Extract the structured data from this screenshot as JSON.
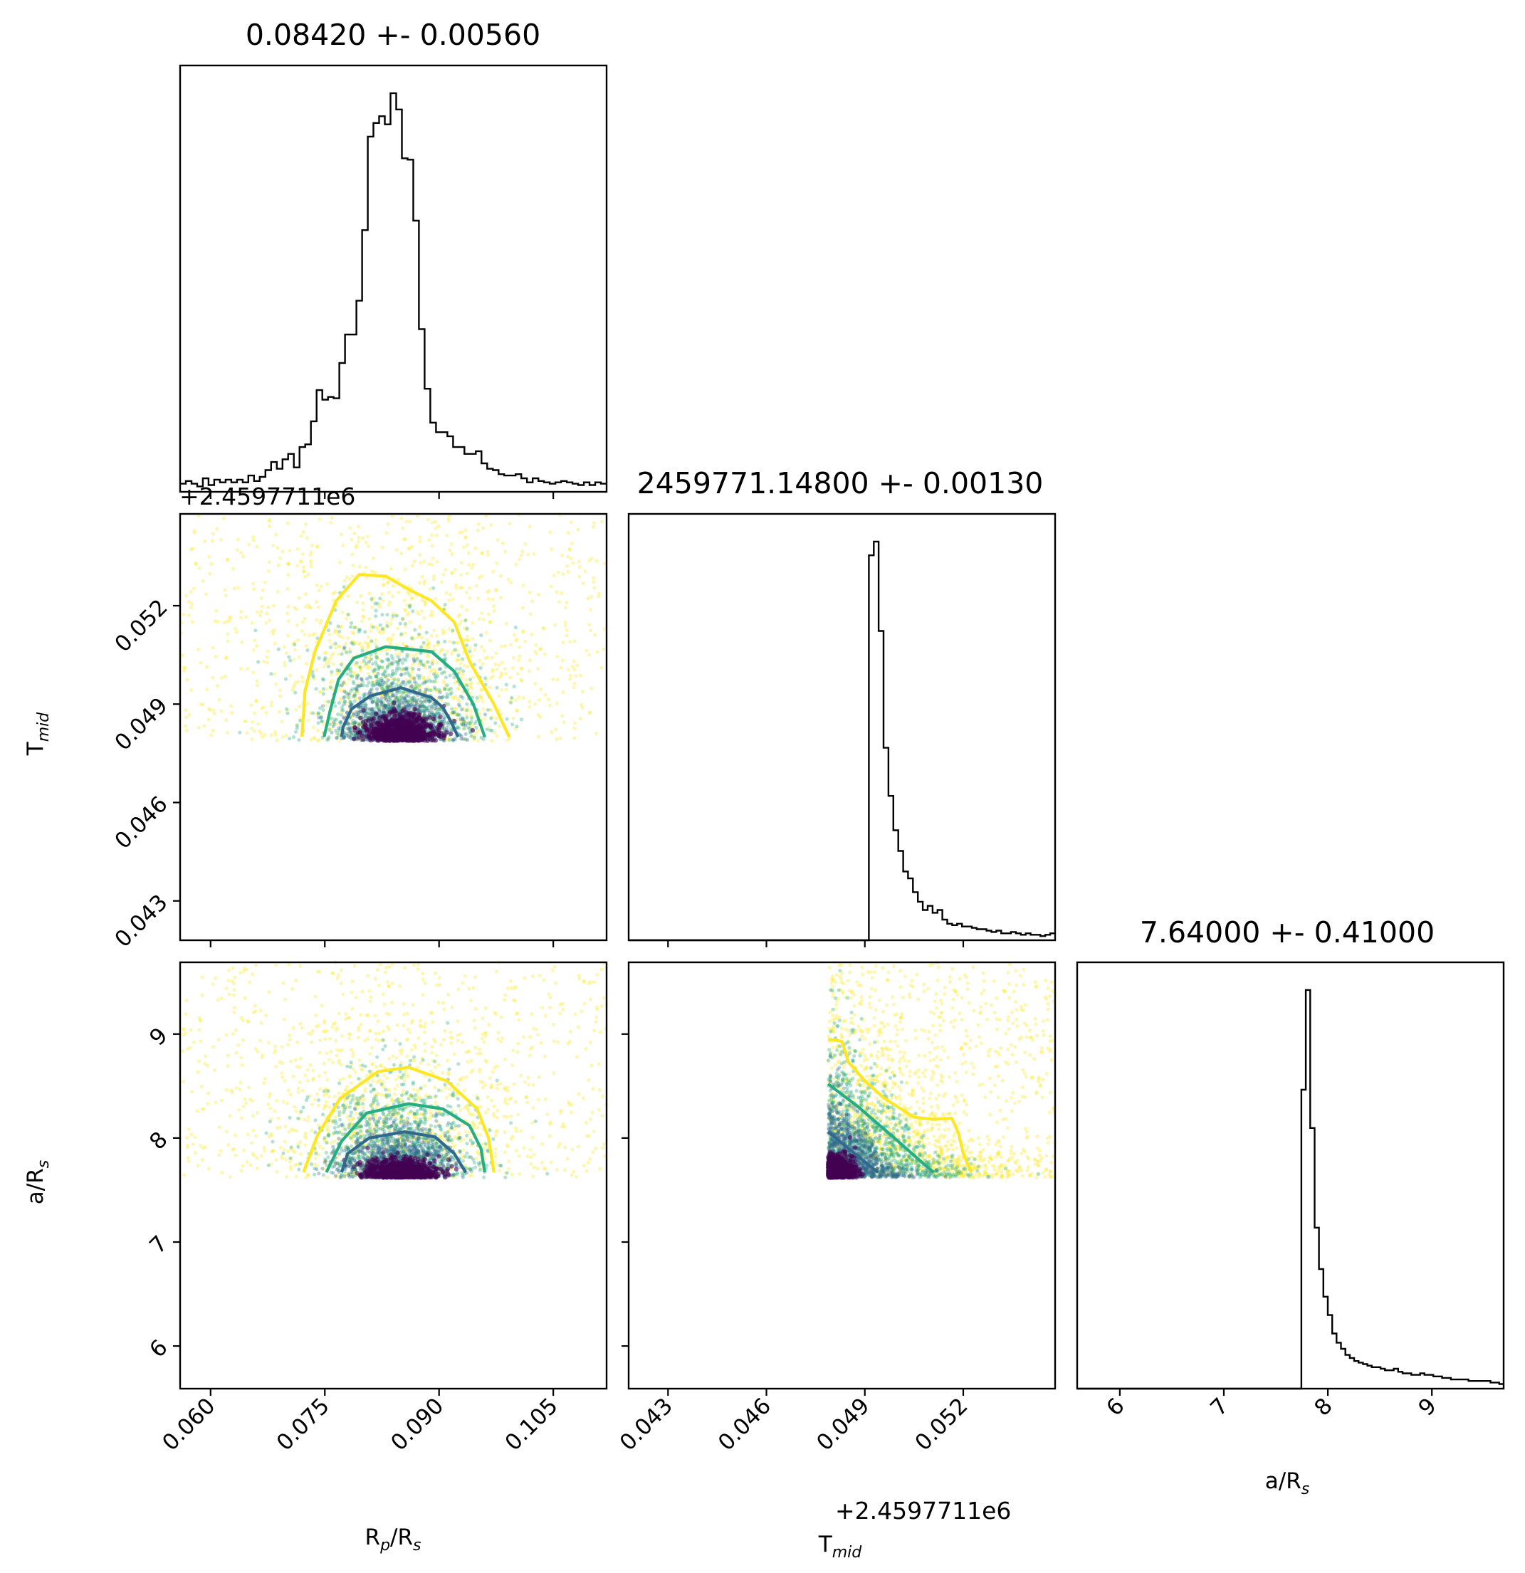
{
  "chart_data": {
    "type": "scatter",
    "kind": "corner-plot",
    "parameters": [
      {
        "id": "rp",
        "label_main": "R",
        "label_sub": "p",
        "label_tail": "/R",
        "label_sub2": "s",
        "range": [
          0.056,
          0.112
        ],
        "ticks": [
          "0.060",
          "0.075",
          "0.090",
          "0.105"
        ],
        "tick_values": [
          0.06,
          0.075,
          0.09,
          0.105
        ]
      },
      {
        "id": "tmid",
        "label_main": "T",
        "label_sub": "mid",
        "offset_text": "+2.4597711e6",
        "range": [
          0.0418,
          0.0548
        ],
        "ticks": [
          "0.043",
          "0.046",
          "0.049",
          "0.052"
        ],
        "tick_values": [
          0.043,
          0.046,
          0.049,
          0.052
        ]
      },
      {
        "id": "ars",
        "label_main": "a/R",
        "label_sub": "s",
        "range": [
          5.59,
          9.69
        ],
        "ticks": [
          "6",
          "7",
          "8",
          "9"
        ],
        "tick_values": [
          6,
          7,
          8,
          9
        ]
      }
    ],
    "titles": [
      "0.08420 +- 0.00560",
      "2459771.14800 +- 0.00130",
      "7.64000 +- 0.41000"
    ],
    "histograms": {
      "rp": {
        "bins_start": 0.056,
        "bins_end": 0.112,
        "counts": [
          6,
          8,
          6,
          4,
          10,
          5,
          9,
          7,
          9,
          7,
          9,
          7,
          12,
          8,
          11,
          16,
          22,
          17,
          24,
          28,
          18,
          33,
          35,
          52,
          75,
          68,
          70,
          69,
          95,
          116,
          116,
          141,
          193,
          262,
          272,
          277,
          271,
          294,
          282,
          246,
          245,
          200,
          120,
          76,
          51,
          44,
          44,
          41,
          33,
          33,
          28,
          28,
          30,
          21,
          17,
          16,
          13,
          12,
          12,
          13,
          10,
          7,
          10,
          8,
          7,
          6,
          7,
          8,
          7,
          6,
          5,
          7,
          5,
          7,
          6
        ]
      },
      "tmid": {
        "bins_start": 0.0418,
        "bins_end": 0.0548,
        "zero_below": 0.04788,
        "counts": [
          0,
          0,
          0,
          0,
          0,
          0,
          0,
          0,
          0,
          0,
          0,
          0,
          0,
          0,
          0,
          0,
          0,
          0,
          0,
          0,
          0,
          0,
          0,
          0,
          0,
          0,
          0,
          0,
          0,
          0,
          0,
          0,
          0,
          0,
          0,
          0,
          0,
          0,
          0,
          0,
          0,
          0,
          0,
          0,
          0,
          0,
          0,
          0,
          0,
          280,
          290,
          225,
          140,
          105,
          80,
          65,
          50,
          45,
          35,
          28,
          22,
          25,
          20,
          22,
          15,
          12,
          11,
          12,
          10,
          10,
          9,
          8,
          8,
          7,
          6,
          7,
          5,
          5,
          6,
          5,
          4,
          5,
          4,
          4,
          3,
          4,
          5
        ]
      },
      "ars": {
        "bins_start": 5.59,
        "bins_end": 9.69,
        "zero_below": 7.62,
        "counts": [
          0,
          0,
          0,
          0,
          0,
          0,
          0,
          0,
          0,
          0,
          0,
          0,
          0,
          0,
          0,
          0,
          0,
          0,
          0,
          0,
          0,
          0,
          0,
          0,
          0,
          0,
          0,
          0,
          0,
          0,
          0,
          0,
          0,
          0,
          0,
          0,
          0,
          0,
          0,
          0,
          0,
          0,
          0,
          0,
          0,
          0,
          0,
          0,
          0,
          0,
          0,
          195,
          260,
          170,
          105,
          78,
          60,
          48,
          36,
          30,
          26,
          22,
          20,
          18,
          17,
          16,
          15,
          14,
          14,
          13,
          12,
          12,
          13,
          11,
          10,
          10,
          9,
          9,
          10,
          9,
          9,
          8,
          8,
          7,
          7,
          6,
          6,
          6,
          6,
          5,
          5,
          5,
          5,
          5,
          4,
          4,
          3
        ]
      }
    },
    "contours": {
      "rp_tmid": [
        {
          "level": "inner",
          "color": "#31688e",
          "points": [
            [
              0.0772,
              0.048
            ],
            [
              0.0774,
              0.0483
            ],
            [
              0.0785,
              0.04885
            ],
            [
              0.081,
              0.04925
            ],
            [
              0.085,
              0.0495
            ],
            [
              0.089,
              0.0492
            ],
            [
              0.0905,
              0.0489
            ],
            [
              0.0916,
              0.04845
            ],
            [
              0.0925,
              0.048
            ]
          ]
        },
        {
          "level": "middle",
          "color": "#26ad81",
          "points": [
            [
              0.0749,
              0.048
            ],
            [
              0.0757,
              0.0488
            ],
            [
              0.0768,
              0.04975
            ],
            [
              0.0788,
              0.0504
            ],
            [
              0.083,
              0.05075
            ],
            [
              0.089,
              0.0506
            ],
            [
              0.092,
              0.05
            ],
            [
              0.0945,
              0.049
            ],
            [
              0.096,
              0.048
            ]
          ]
        },
        {
          "level": "outer",
          "color": "#fde725",
          "points": [
            [
              0.072,
              0.048
            ],
            [
              0.0724,
              0.0494
            ],
            [
              0.0737,
              0.0506
            ],
            [
              0.0765,
              0.05215
            ],
            [
              0.0795,
              0.05295
            ],
            [
              0.083,
              0.0529
            ],
            [
              0.086,
              0.0525
            ],
            [
              0.089,
              0.05215
            ],
            [
              0.092,
              0.0515
            ],
            [
              0.094,
              0.0503
            ],
            [
              0.0972,
              0.049
            ],
            [
              0.0992,
              0.048
            ]
          ]
        }
      ],
      "rp_ars": [
        {
          "level": "inner",
          "color": "#31688e",
          "points": [
            [
              0.0772,
              7.67
            ],
            [
              0.078,
              7.85
            ],
            [
              0.0808,
              8.0
            ],
            [
              0.0855,
              8.06
            ],
            [
              0.0895,
              8.01
            ],
            [
              0.092,
              7.85
            ],
            [
              0.0935,
              7.67
            ]
          ]
        },
        {
          "level": "middle",
          "color": "#26ad81",
          "points": [
            [
              0.0752,
              7.67
            ],
            [
              0.0772,
              7.97
            ],
            [
              0.0805,
              8.24
            ],
            [
              0.086,
              8.33
            ],
            [
              0.0905,
              8.28
            ],
            [
              0.094,
              8.12
            ],
            [
              0.0955,
              7.9
            ],
            [
              0.096,
              7.67
            ]
          ]
        },
        {
          "level": "outer",
          "color": "#fde725",
          "points": [
            [
              0.0722,
              7.67
            ],
            [
              0.074,
              8.02
            ],
            [
              0.077,
              8.38
            ],
            [
              0.082,
              8.64
            ],
            [
              0.086,
              8.68
            ],
            [
              0.091,
              8.55
            ],
            [
              0.095,
              8.28
            ],
            [
              0.0965,
              8.0
            ],
            [
              0.0972,
              7.67
            ]
          ]
        }
      ],
      "tmid_ars": [
        {
          "level": "inner",
          "color": "#31688e",
          "points": [
            [
              0.04788,
              8.06
            ],
            [
              0.0485,
              7.9
            ],
            [
              0.0492,
              7.72
            ],
            [
              0.0494,
              7.67
            ]
          ]
        },
        {
          "level": "middle",
          "color": "#26ad81",
          "points": [
            [
              0.04788,
              8.52
            ],
            [
              0.0488,
              8.3
            ],
            [
              0.0499,
              8.0
            ],
            [
              0.0508,
              7.75
            ],
            [
              0.0511,
              7.67
            ]
          ]
        },
        {
          "level": "outer",
          "color": "#fde725",
          "points": [
            [
              0.04788,
              8.95
            ],
            [
              0.0483,
              8.93
            ],
            [
              0.0485,
              8.73
            ],
            [
              0.049,
              8.55
            ],
            [
              0.0496,
              8.38
            ],
            [
              0.0505,
              8.2
            ],
            [
              0.0511,
              8.18
            ],
            [
              0.05165,
              8.19
            ],
            [
              0.05185,
              8.05
            ],
            [
              0.052,
              7.85
            ],
            [
              0.05225,
              7.67
            ]
          ]
        }
      ]
    },
    "colors": {
      "histogram": "#000000",
      "points_outer": "#fde725",
      "points_middle": "#26ad81",
      "points_inner": "#31688e",
      "density_core": "#440154"
    },
    "grid": false,
    "legend": "none"
  }
}
